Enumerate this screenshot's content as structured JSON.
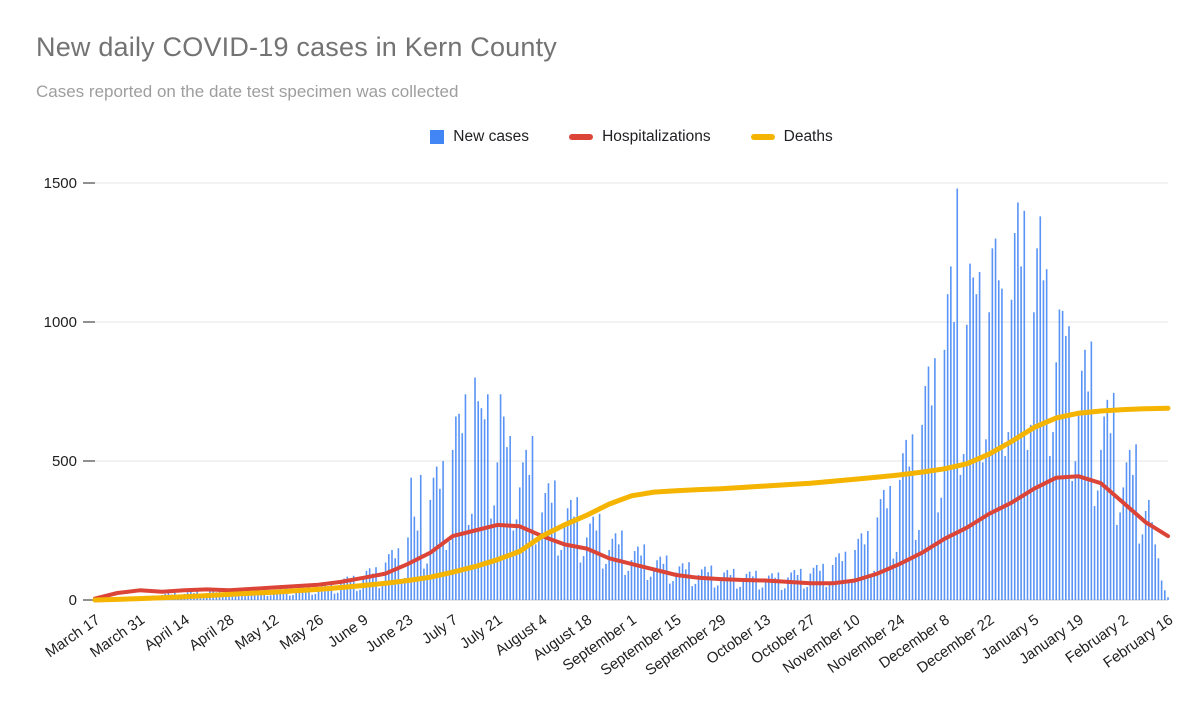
{
  "chart_data": {
    "type": "bar",
    "subtype": "combo-bar-line",
    "title": "New daily COVID-19 cases in Kern County",
    "subtitle": "Cases reported on the date test specimen was collected",
    "legend_position": "top",
    "grid": true,
    "ylim": [
      0,
      1500
    ],
    "y_ticks": [
      0,
      500,
      1000,
      1500
    ],
    "x_tick_interval_days": 14,
    "x_tick_labels": [
      "March 17",
      "March 31",
      "April 14",
      "April 28",
      "May 12",
      "May 26",
      "June 9",
      "June 23",
      "July 7",
      "July 21",
      "August 4",
      "August 18",
      "September 1",
      "September 15",
      "September 29",
      "October 13",
      "October 27",
      "November 10",
      "November 24",
      "December 8",
      "December 22",
      "January 5",
      "January 19",
      "February 2",
      "February 16"
    ],
    "axis_colors": {
      "grid": "#e6e6e6",
      "baseline": "#c9c9c9",
      "tick": "#6b6b6b",
      "text": "#1f1f1f"
    },
    "bar_series": {
      "name": "New cases",
      "color": "#4285f4",
      "values": [
        1,
        2,
        3,
        2,
        4,
        1,
        2,
        5,
        7,
        8,
        6,
        9,
        3,
        4,
        10,
        14,
        15,
        12,
        16,
        6,
        7,
        18,
        22,
        25,
        20,
        26,
        9,
        11,
        22,
        28,
        30,
        25,
        32,
        12,
        14,
        25,
        31,
        34,
        28,
        35,
        13,
        15,
        27,
        33,
        36,
        30,
        38,
        14,
        16,
        29,
        35,
        38,
        32,
        40,
        15,
        17,
        32,
        38,
        42,
        35,
        44,
        16,
        18,
        38,
        46,
        50,
        42,
        52,
        19,
        22,
        45,
        55,
        60,
        50,
        62,
        23,
        26,
        63,
        77,
        84,
        70,
        87,
        32,
        37,
        86,
        105,
        114,
        95,
        118,
        43,
        50,
        135,
        165,
        180,
        150,
        186,
        68,
        79,
        225,
        440,
        300,
        250,
        450,
        113,
        131,
        360,
        440,
        480,
        400,
        500,
        180,
        210,
        540,
        660,
        670,
        600,
        740,
        270,
        310,
        800,
        715,
        690,
        650,
        740,
        293,
        340,
        495,
        740,
        660,
        550,
        590,
        250,
        290,
        405,
        495,
        540,
        450,
        590,
        200,
        240,
        315,
        385,
        420,
        350,
        430,
        160,
        180,
        270,
        330,
        360,
        300,
        370,
        135,
        158,
        225,
        275,
        300,
        250,
        310,
        113,
        130,
        180,
        220,
        240,
        200,
        250,
        90,
        105,
        144,
        176,
        192,
        160,
        200,
        72,
        84,
        117,
        143,
        156,
        130,
        160,
        59,
        68,
        99,
        121,
        132,
        110,
        136,
        50,
        58,
        90,
        110,
        120,
        100,
        124,
        45,
        52,
        81,
        99,
        108,
        90,
        112,
        41,
        47,
        77,
        94,
        102,
        85,
        105,
        38,
        45,
        72,
        88,
        96,
        80,
        99,
        36,
        42,
        81,
        99,
        108,
        90,
        112,
        41,
        47,
        95,
        116,
        126,
        105,
        130,
        47,
        55,
        126,
        154,
        168,
        140,
        174,
        63,
        73,
        180,
        220,
        240,
        200,
        248,
        90,
        105,
        297,
        363,
        396,
        330,
        410,
        149,
        173,
        432,
        528,
        576,
        480,
        596,
        216,
        252,
        630,
        770,
        840,
        700,
        870,
        315,
        368,
        900,
        1100,
        1200,
        1000,
        1480,
        450,
        525,
        990,
        1210,
        1160,
        1100,
        1180,
        495,
        578,
        1035,
        1265,
        1300,
        1150,
        1120,
        518,
        604,
        1080,
        1320,
        1430,
        1200,
        1400,
        540,
        630,
        1035,
        1265,
        1380,
        1150,
        1190,
        518,
        604,
        855,
        1045,
        1040,
        950,
        985,
        428,
        499,
        675,
        825,
        900,
        750,
        930,
        338,
        394,
        540,
        660,
        720,
        600,
        745,
        270,
        315,
        405,
        495,
        540,
        450,
        560,
        203,
        236,
        320,
        360,
        280,
        200,
        150,
        70,
        35,
        10
      ]
    },
    "line_series": [
      {
        "name": "Hospitalizations",
        "color": "#db4437",
        "stroke_width": 4,
        "sample_interval_days": 7,
        "values": [
          5,
          25,
          35,
          30,
          35,
          38,
          35,
          40,
          45,
          50,
          55,
          65,
          80,
          95,
          130,
          170,
          230,
          250,
          270,
          265,
          230,
          200,
          185,
          150,
          130,
          110,
          90,
          80,
          75,
          72,
          70,
          65,
          60,
          60,
          70,
          95,
          130,
          170,
          220,
          260,
          310,
          350,
          400,
          440,
          445,
          420,
          350,
          280,
          230
        ]
      },
      {
        "name": "Deaths",
        "color": "#f4b400",
        "stroke_width": 5,
        "sample_interval_days": 7,
        "values": [
          0,
          2,
          5,
          8,
          12,
          16,
          20,
          24,
          28,
          33,
          38,
          45,
          52,
          60,
          70,
          82,
          100,
          120,
          145,
          175,
          230,
          270,
          305,
          345,
          375,
          388,
          393,
          397,
          400,
          405,
          410,
          415,
          420,
          427,
          434,
          442,
          450,
          460,
          472,
          490,
          525,
          570,
          620,
          655,
          672,
          680,
          685,
          688,
          690
        ]
      }
    ]
  }
}
